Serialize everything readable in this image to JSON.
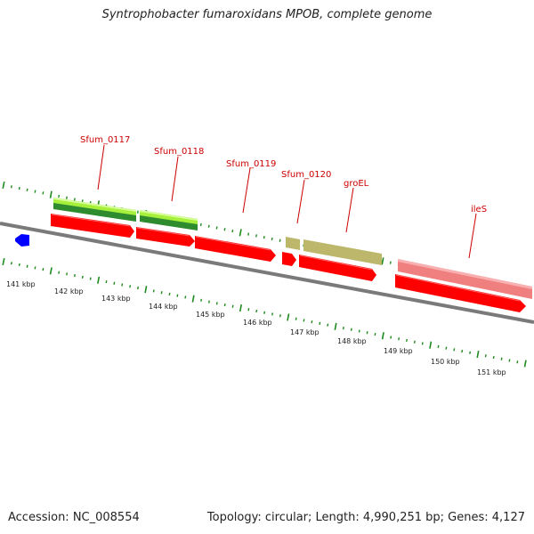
{
  "title": "Syntrophobacter fumaroxidans MPOB, complete genome",
  "footer": {
    "accession": "Accession: NC_008554",
    "summary": "Topology: circular; Length: 4,990,251 bp; Genes: 4,127"
  },
  "scale_labels": [
    "141 kbp",
    "142 kbp",
    "143 kbp",
    "144 kbp",
    "145 kbp",
    "146 kbp",
    "147 kbp",
    "148 kbp",
    "149 kbp",
    "150 kbp",
    "151 kbp"
  ],
  "gene_labels": [
    "Sfum_0117",
    "Sfum_0118",
    "Sfum_0119",
    "Sfum_0120",
    "groEL",
    "ileS"
  ],
  "colors": {
    "backbone": "#808080",
    "tick": "#1e8a1e",
    "gene_label": "#cc0000",
    "cds": "#ff0000",
    "green_light": "#a6f03c",
    "green_dark": "#2e8b2e",
    "olive": "#bdb76b",
    "pink": "#f08080",
    "blue": "#0000ff"
  }
}
